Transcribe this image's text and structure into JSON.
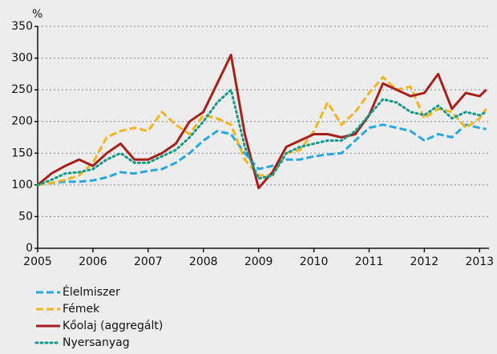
{
  "chart_data": {
    "type": "line",
    "ylabel": "%",
    "x": [
      2005,
      2005.25,
      2005.5,
      2005.75,
      2006,
      2006.25,
      2006.5,
      2006.75,
      2007,
      2007.25,
      2007.5,
      2007.75,
      2008,
      2008.25,
      2008.5,
      2008.75,
      2009,
      2009.25,
      2009.5,
      2009.75,
      2010,
      2010.25,
      2010.5,
      2010.75,
      2011,
      2011.25,
      2011.5,
      2011.75,
      2012,
      2012.25,
      2012.5,
      2012.75,
      2013,
      2013.12
    ],
    "xlim": [
      2005,
      2013.17
    ],
    "xticks": [
      2005,
      2006,
      2007,
      2008,
      2009,
      2010,
      2011,
      2012,
      2013
    ],
    "ylim": [
      0,
      350
    ],
    "yticks": [
      0,
      50,
      100,
      150,
      200,
      250,
      300,
      350
    ],
    "grid": true,
    "legend": "bottom-left",
    "series": [
      {
        "name": "Élelmiszer",
        "color": "#29a8e0",
        "dash": "dashed",
        "values": [
          100,
          103,
          105,
          105,
          107,
          112,
          120,
          118,
          122,
          125,
          135,
          150,
          170,
          185,
          180,
          150,
          125,
          130,
          140,
          140,
          145,
          148,
          150,
          170,
          190,
          195,
          190,
          185,
          170,
          180,
          175,
          195,
          190,
          188
        ]
      },
      {
        "name": "Fémek",
        "color": "#f2b51c",
        "dash": "dashed",
        "values": [
          100,
          103,
          108,
          115,
          135,
          175,
          185,
          190,
          185,
          215,
          195,
          180,
          210,
          205,
          195,
          140,
          115,
          115,
          150,
          155,
          185,
          230,
          195,
          215,
          245,
          270,
          250,
          255,
          205,
          220,
          215,
          190,
          205,
          220
        ]
      },
      {
        "name": "Kőolaj (aggregált)",
        "color": "#a8201a",
        "dash": "solid",
        "values": [
          100,
          118,
          130,
          140,
          130,
          150,
          165,
          140,
          140,
          150,
          165,
          200,
          215,
          260,
          305,
          180,
          95,
          120,
          160,
          170,
          180,
          180,
          175,
          180,
          210,
          260,
          250,
          240,
          245,
          275,
          220,
          245,
          240,
          250
        ]
      },
      {
        "name": "Nyersanyag",
        "color": "#12998a",
        "dash": "dotted",
        "values": [
          100,
          108,
          118,
          120,
          125,
          140,
          150,
          135,
          135,
          145,
          155,
          175,
          200,
          230,
          250,
          160,
          110,
          115,
          150,
          160,
          165,
          170,
          170,
          185,
          210,
          235,
          230,
          215,
          210,
          225,
          205,
          215,
          210,
          215
        ]
      }
    ]
  }
}
